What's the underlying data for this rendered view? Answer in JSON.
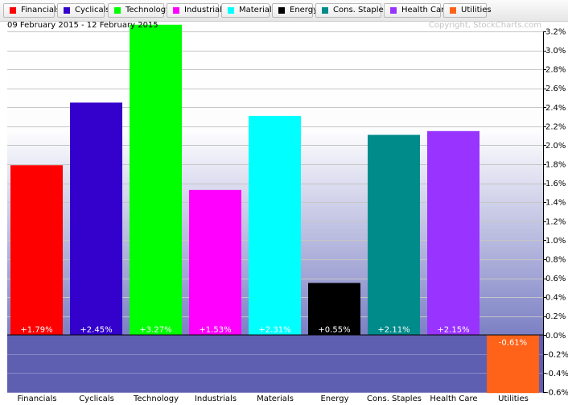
{
  "header": {
    "date_range": "09 February 2015 - 12 February 2015",
    "copyright": "Copyright, StockCharts.com"
  },
  "legend": [
    {
      "label": "Financials",
      "color": "#ff0000"
    },
    {
      "label": "Cyclicals",
      "color": "#3300cc"
    },
    {
      "label": "Technology",
      "color": "#00ff00"
    },
    {
      "label": "Industrials",
      "color": "#ff00ff"
    },
    {
      "label": "Materials",
      "color": "#00ffff"
    },
    {
      "label": "Energy",
      "color": "#000000"
    },
    {
      "label": "Cons. Staples",
      "color": "#008b8b"
    },
    {
      "label": "Health Care",
      "color": "#9933ff"
    },
    {
      "label": "Utilities",
      "color": "#ff6319"
    }
  ],
  "chart_data": {
    "type": "bar",
    "title": "",
    "xlabel": "",
    "ylabel": "",
    "categories": [
      "Financials",
      "Cyclicals",
      "Technology",
      "Industrials",
      "Materials",
      "Energy",
      "Cons. Staples",
      "Health Care",
      "Utilities"
    ],
    "values": [
      1.79,
      2.45,
      3.27,
      1.53,
      2.31,
      0.55,
      2.11,
      2.15,
      -0.61
    ],
    "value_labels": [
      "+1.79%",
      "+2.45%",
      "+3.27%",
      "+1.53%",
      "+2.31%",
      "+0.55%",
      "+2.11%",
      "+2.15%",
      "-0.61%"
    ],
    "colors": [
      "#ff0000",
      "#3300cc",
      "#00ff00",
      "#ff00ff",
      "#00ffff",
      "#000000",
      "#008b8b",
      "#9933ff",
      "#ff6319"
    ],
    "ylim": [
      -0.6,
      3.2
    ],
    "yticks": [
      3.2,
      3.0,
      2.8,
      2.6,
      2.4,
      2.2,
      2.0,
      1.8,
      1.6,
      1.4,
      1.2,
      1.0,
      0.8,
      0.6,
      0.4,
      0.2,
      0.0,
      -0.2,
      -0.4,
      -0.6
    ],
    "ytick_labels": [
      "3.2%",
      "3.0%",
      "2.8%",
      "2.6%",
      "2.4%",
      "2.2%",
      "2.0%",
      "1.8%",
      "1.6%",
      "1.4%",
      "1.2%",
      "1.0%",
      "0.8%",
      "0.6%",
      "0.4%",
      "0.2%",
      "0.0%",
      "-0.2%",
      "-0.4%",
      "-0.6%"
    ],
    "grid": true,
    "y_axis_side": "right",
    "legend_position": "top"
  }
}
